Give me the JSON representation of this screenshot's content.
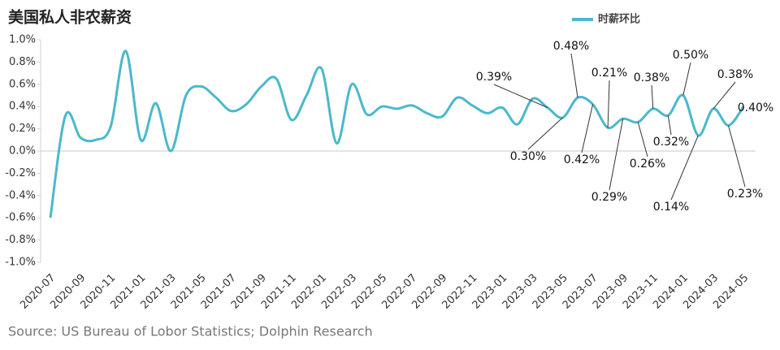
{
  "chart_data": {
    "type": "line",
    "title": "美国私人非农薪资",
    "source": "Source: US Bureau of Lobor Statistics; Dolphin Research",
    "categories": [
      "2020-07",
      null,
      "2020-09",
      null,
      "2020-11",
      null,
      "2021-01",
      null,
      "2021-03",
      null,
      "2021-05",
      null,
      "2021-07",
      null,
      "2021-09",
      null,
      "2021-11",
      null,
      "2022-01",
      null,
      "2022-03",
      null,
      "2022-05",
      null,
      "2022-07",
      null,
      "2022-09",
      null,
      "2022-11",
      null,
      "2023-01",
      null,
      "2023-03",
      null,
      "2023-05",
      null,
      "2023-07",
      null,
      "2023-09",
      null,
      "2023-11",
      null,
      "2024-01",
      null,
      "2024-03",
      null,
      "2024-05"
    ],
    "series": [
      {
        "name": "时薪环比",
        "color": "#4bb8cc",
        "values": [
          -0.6,
          0.32,
          0.12,
          0.1,
          0.22,
          0.9,
          0.1,
          0.43,
          0.0,
          0.5,
          0.58,
          0.48,
          0.36,
          0.42,
          0.58,
          0.65,
          0.28,
          0.5,
          0.74,
          0.07,
          0.6,
          0.33,
          0.4,
          0.38,
          0.41,
          0.34,
          0.31,
          0.48,
          0.41,
          0.34,
          0.39,
          0.24,
          0.47,
          0.39,
          0.3,
          0.48,
          0.42,
          0.21,
          0.29,
          0.26,
          0.38,
          0.32,
          0.5,
          0.14,
          0.38,
          0.23,
          0.4
        ],
        "value_labels": [
          null,
          null,
          null,
          null,
          null,
          null,
          null,
          null,
          null,
          null,
          null,
          null,
          null,
          null,
          null,
          null,
          null,
          null,
          null,
          null,
          null,
          null,
          null,
          null,
          null,
          null,
          null,
          null,
          null,
          null,
          null,
          null,
          null,
          "0.39%",
          "0.30%",
          "0.48%",
          "0.42%",
          "0.21%",
          "0.29%",
          "0.26%",
          "0.38%",
          "0.32%",
          "0.50%",
          "0.14%",
          "0.38%",
          "0.23%",
          "0.40%"
        ]
      }
    ],
    "ylim": [
      -1.0,
      1.0
    ],
    "yticks": [
      {
        "value": -1.0,
        "label": "-1.0%"
      },
      {
        "value": -0.8,
        "label": "-0.8%"
      },
      {
        "value": -0.6,
        "label": "-0.6%"
      },
      {
        "value": -0.4,
        "label": "-0.4%"
      },
      {
        "value": -0.2,
        "label": "-0.2%"
      },
      {
        "value": 0.0,
        "label": "0.0%"
      },
      {
        "value": 0.2,
        "label": "0.2%"
      },
      {
        "value": 0.4,
        "label": "0.4%"
      },
      {
        "value": 0.6,
        "label": "0.6%"
      },
      {
        "value": 0.8,
        "label": "0.8%"
      },
      {
        "value": 1.0,
        "label": "1.0%"
      }
    ],
    "legend": "top"
  }
}
